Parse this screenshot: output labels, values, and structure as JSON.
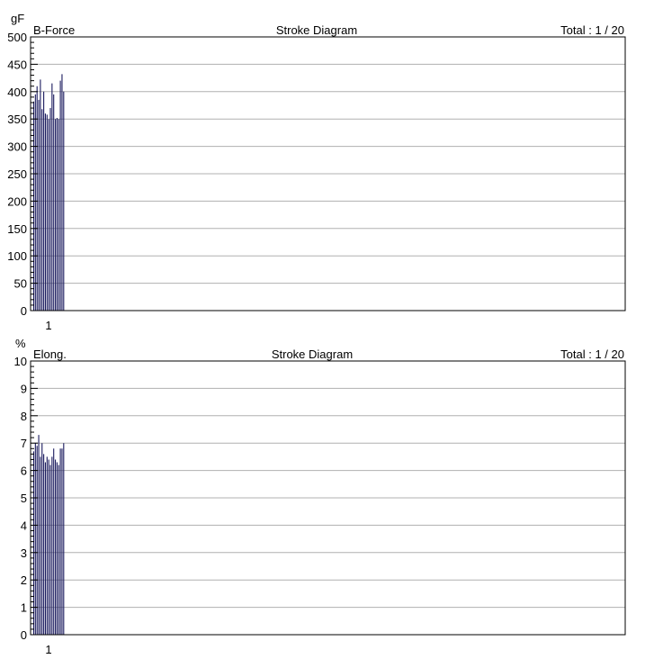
{
  "chart_data": [
    {
      "type": "bar",
      "series_label": "B-Force",
      "title": "Stroke Diagram",
      "total_label": "Total : 1 / 20",
      "unit": "gF",
      "ylim": [
        0,
        500
      ],
      "yticks": [
        0,
        50,
        100,
        150,
        200,
        250,
        300,
        350,
        400,
        450,
        500
      ],
      "xtick": "1",
      "bar_color": "#1a1a5e",
      "grid": true,
      "values": [
        382,
        395,
        410,
        385,
        422,
        368,
        400,
        360,
        358,
        350,
        370,
        415,
        395,
        350,
        352,
        350,
        420,
        432,
        400
      ]
    },
    {
      "type": "bar",
      "series_label": "Elong.",
      "title": "Stroke Diagram",
      "total_label": "Total : 1 / 20",
      "unit": "%",
      "ylim": [
        0,
        10
      ],
      "yticks": [
        0,
        1,
        2,
        3,
        4,
        5,
        6,
        7,
        8,
        9,
        10
      ],
      "xtick": "1",
      "bar_color": "#1a1a5e",
      "grid": true,
      "values": [
        6.7,
        7.0,
        6.9,
        7.3,
        6.5,
        7.0,
        6.6,
        6.3,
        6.5,
        6.4,
        6.2,
        6.5,
        6.8,
        6.4,
        6.3,
        6.2,
        6.8,
        6.8,
        7.0
      ]
    }
  ]
}
